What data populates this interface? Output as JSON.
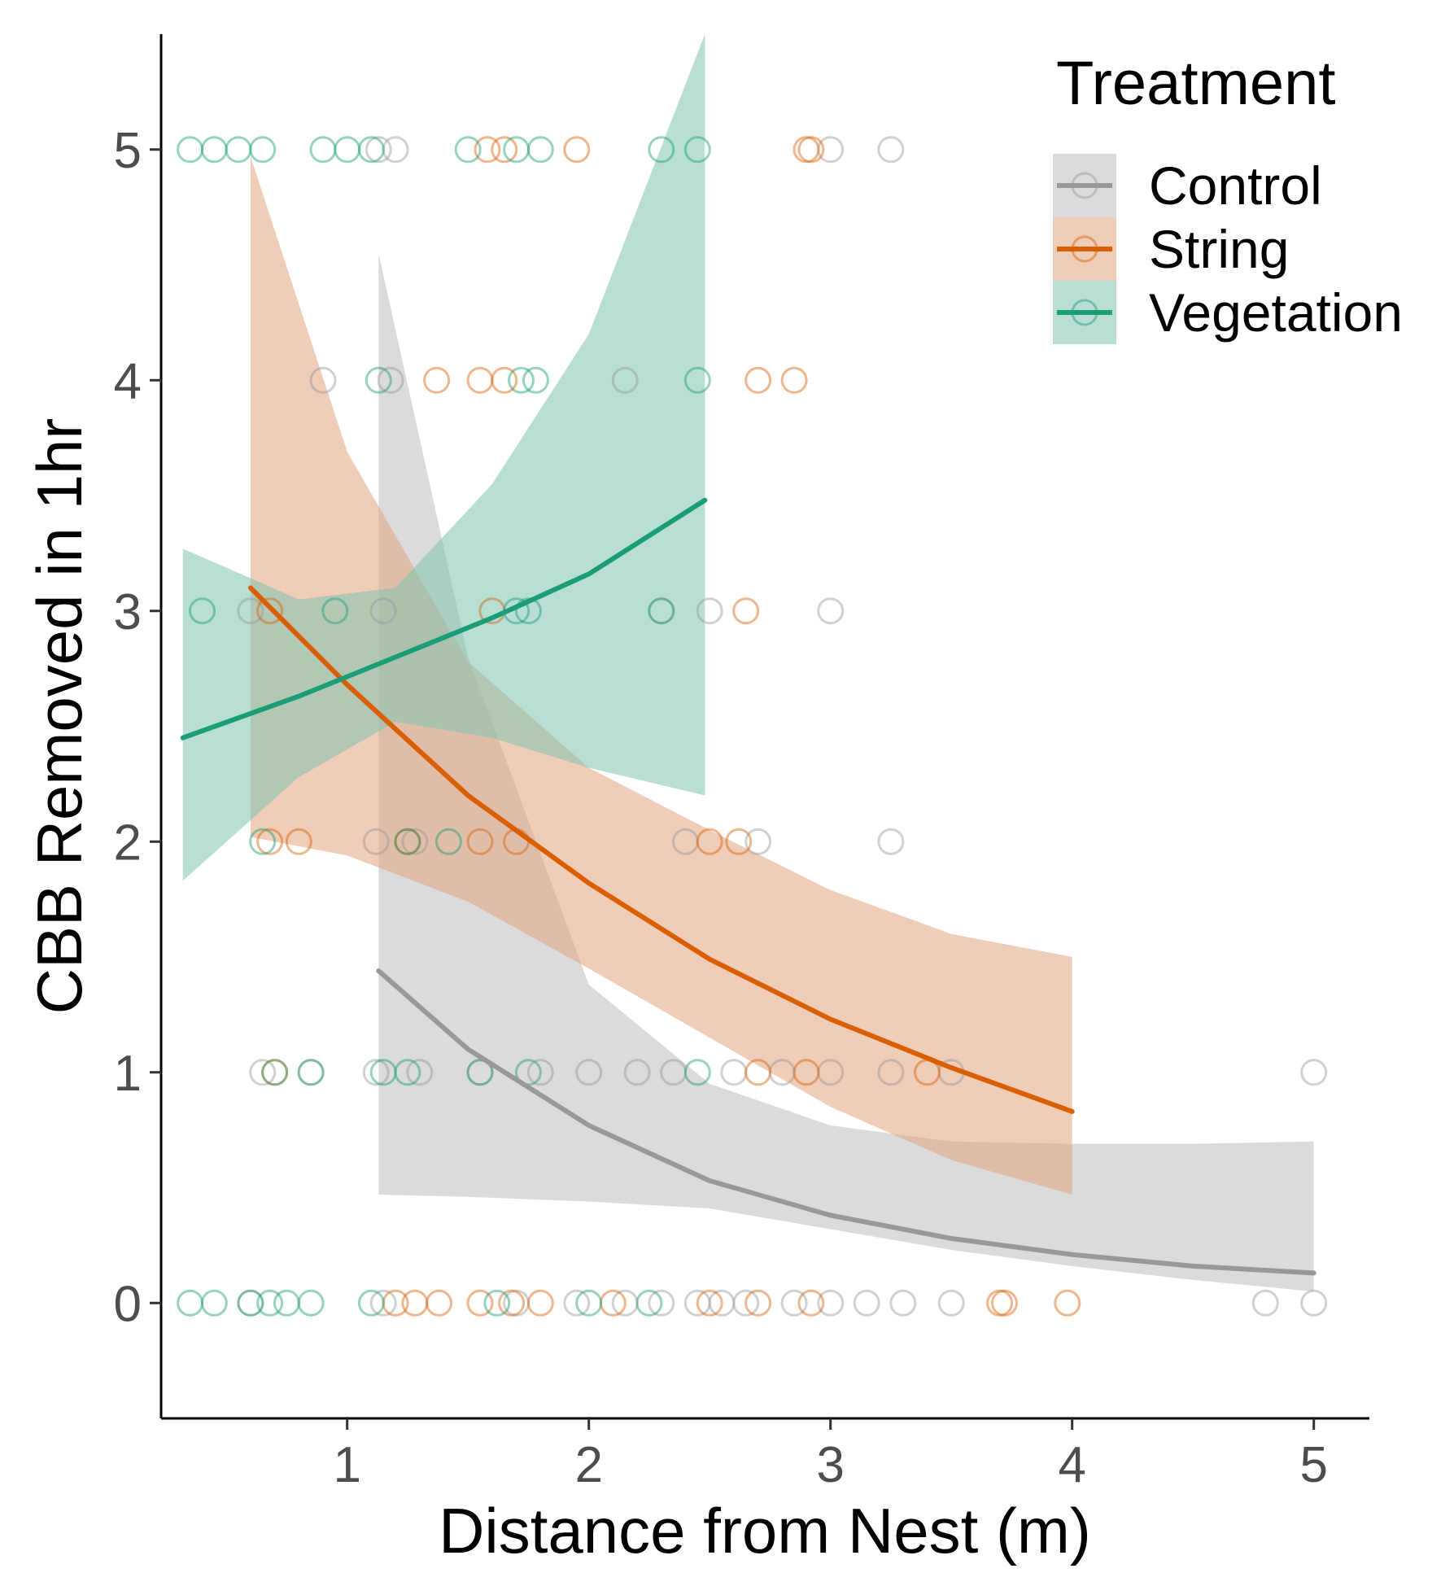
{
  "chart_data": {
    "type": "scatter",
    "title": "",
    "xlabel": "Distance from Nest (m)",
    "ylabel": "CBB Removed in 1hr",
    "xlim": [
      0.23,
      5.23
    ],
    "ylim": [
      -0.5,
      5.5
    ],
    "x_ticks": [
      1,
      2,
      3,
      4,
      5
    ],
    "x_tick_labels": [
      "1",
      "2",
      "3",
      "4",
      "5"
    ],
    "y_ticks": [
      0,
      1,
      2,
      3,
      4,
      5
    ],
    "y_tick_labels": [
      "0",
      "1",
      "2",
      "3",
      "4",
      "5"
    ],
    "grid": false,
    "legend": {
      "title": "Treatment",
      "position": "top-right"
    },
    "series": [
      {
        "name": "Control",
        "color": "#999999",
        "ribbon_color": "#bdbdbd",
        "fit": {
          "x": [
            1.13,
            1.5,
            2.0,
            2.5,
            3.0,
            3.5,
            4.0,
            4.5,
            5.0
          ],
          "y": [
            1.44,
            1.1,
            0.77,
            0.53,
            0.38,
            0.28,
            0.21,
            0.16,
            0.13
          ],
          "lower": [
            0.47,
            0.46,
            0.44,
            0.41,
            0.32,
            0.23,
            0.16,
            0.1,
            0.05
          ],
          "upper": [
            4.55,
            2.8,
            1.38,
            0.95,
            0.77,
            0.7,
            0.69,
            0.69,
            0.7
          ]
        },
        "points": [
          {
            "x": 1.13,
            "y": 5
          },
          {
            "x": 1.2,
            "y": 5
          },
          {
            "x": 3.0,
            "y": 5
          },
          {
            "x": 3.25,
            "y": 5
          },
          {
            "x": 0.9,
            "y": 4
          },
          {
            "x": 1.18,
            "y": 4
          },
          {
            "x": 2.15,
            "y": 4
          },
          {
            "x": 0.6,
            "y": 3
          },
          {
            "x": 1.15,
            "y": 3
          },
          {
            "x": 2.3,
            "y": 3
          },
          {
            "x": 2.5,
            "y": 3
          },
          {
            "x": 3.0,
            "y": 3
          },
          {
            "x": 1.12,
            "y": 2
          },
          {
            "x": 1.28,
            "y": 2
          },
          {
            "x": 2.4,
            "y": 2
          },
          {
            "x": 2.7,
            "y": 2
          },
          {
            "x": 3.25,
            "y": 2
          },
          {
            "x": 0.65,
            "y": 1
          },
          {
            "x": 0.85,
            "y": 1
          },
          {
            "x": 1.12,
            "y": 1
          },
          {
            "x": 1.3,
            "y": 1
          },
          {
            "x": 1.55,
            "y": 1
          },
          {
            "x": 1.8,
            "y": 1
          },
          {
            "x": 2.0,
            "y": 1
          },
          {
            "x": 2.2,
            "y": 1
          },
          {
            "x": 2.35,
            "y": 1
          },
          {
            "x": 2.6,
            "y": 1
          },
          {
            "x": 2.8,
            "y": 1
          },
          {
            "x": 3.0,
            "y": 1
          },
          {
            "x": 3.25,
            "y": 1
          },
          {
            "x": 3.5,
            "y": 1
          },
          {
            "x": 5.0,
            "y": 1
          },
          {
            "x": 0.6,
            "y": 0
          },
          {
            "x": 1.15,
            "y": 0
          },
          {
            "x": 1.7,
            "y": 0
          },
          {
            "x": 1.95,
            "y": 0
          },
          {
            "x": 2.15,
            "y": 0
          },
          {
            "x": 2.3,
            "y": 0
          },
          {
            "x": 2.45,
            "y": 0
          },
          {
            "x": 2.55,
            "y": 0
          },
          {
            "x": 2.65,
            "y": 0
          },
          {
            "x": 2.85,
            "y": 0
          },
          {
            "x": 3.0,
            "y": 0
          },
          {
            "x": 3.15,
            "y": 0
          },
          {
            "x": 3.3,
            "y": 0
          },
          {
            "x": 3.5,
            "y": 0
          },
          {
            "x": 4.8,
            "y": 0
          },
          {
            "x": 5.0,
            "y": 0
          }
        ]
      },
      {
        "name": "String",
        "color": "#d95f02",
        "ribbon_color": "#e2a47d",
        "fit": {
          "x": [
            0.6,
            1.0,
            1.5,
            2.0,
            2.5,
            3.0,
            3.5,
            4.0
          ],
          "y": [
            3.1,
            2.68,
            2.2,
            1.82,
            1.49,
            1.23,
            1.02,
            0.83
          ],
          "lower": [
            2.02,
            1.94,
            1.74,
            1.45,
            1.15,
            0.85,
            0.62,
            0.47
          ],
          "upper": [
            4.97,
            3.69,
            2.78,
            2.32,
            2.05,
            1.79,
            1.6,
            1.5
          ]
        },
        "points": [
          {
            "x": 1.58,
            "y": 5
          },
          {
            "x": 1.65,
            "y": 5
          },
          {
            "x": 1.95,
            "y": 5
          },
          {
            "x": 2.9,
            "y": 5
          },
          {
            "x": 2.92,
            "y": 5
          },
          {
            "x": 1.37,
            "y": 4
          },
          {
            "x": 1.55,
            "y": 4
          },
          {
            "x": 1.65,
            "y": 4
          },
          {
            "x": 2.7,
            "y": 4
          },
          {
            "x": 2.85,
            "y": 4
          },
          {
            "x": 0.68,
            "y": 3
          },
          {
            "x": 1.6,
            "y": 3
          },
          {
            "x": 2.65,
            "y": 3
          },
          {
            "x": 0.68,
            "y": 2
          },
          {
            "x": 0.8,
            "y": 2
          },
          {
            "x": 1.25,
            "y": 2
          },
          {
            "x": 1.55,
            "y": 2
          },
          {
            "x": 1.7,
            "y": 2
          },
          {
            "x": 2.5,
            "y": 2
          },
          {
            "x": 2.62,
            "y": 2
          },
          {
            "x": 0.7,
            "y": 1
          },
          {
            "x": 2.7,
            "y": 1
          },
          {
            "x": 2.9,
            "y": 1
          },
          {
            "x": 3.4,
            "y": 1
          },
          {
            "x": 1.2,
            "y": 0
          },
          {
            "x": 1.28,
            "y": 0
          },
          {
            "x": 1.38,
            "y": 0
          },
          {
            "x": 1.55,
            "y": 0
          },
          {
            "x": 1.68,
            "y": 0
          },
          {
            "x": 1.8,
            "y": 0
          },
          {
            "x": 2.1,
            "y": 0
          },
          {
            "x": 2.5,
            "y": 0
          },
          {
            "x": 2.7,
            "y": 0
          },
          {
            "x": 2.92,
            "y": 0
          },
          {
            "x": 3.7,
            "y": 0
          },
          {
            "x": 3.72,
            "y": 0
          },
          {
            "x": 3.98,
            "y": 0
          }
        ]
      },
      {
        "name": "Vegetation",
        "color": "#1b9e77",
        "ribbon_color": "#7fc4b0",
        "fit": {
          "x": [
            0.32,
            0.8,
            1.2,
            1.6,
            2.0,
            2.48
          ],
          "y": [
            2.45,
            2.63,
            2.8,
            2.97,
            3.16,
            3.48
          ],
          "lower": [
            1.83,
            2.28,
            2.52,
            2.45,
            2.32,
            2.2
          ],
          "upper": [
            3.27,
            3.05,
            3.1,
            3.55,
            4.2,
            5.5
          ]
        },
        "points": [
          {
            "x": 0.35,
            "y": 5
          },
          {
            "x": 0.45,
            "y": 5
          },
          {
            "x": 0.55,
            "y": 5
          },
          {
            "x": 0.65,
            "y": 5
          },
          {
            "x": 0.9,
            "y": 5
          },
          {
            "x": 1.0,
            "y": 5
          },
          {
            "x": 1.1,
            "y": 5
          },
          {
            "x": 1.5,
            "y": 5
          },
          {
            "x": 1.7,
            "y": 5
          },
          {
            "x": 1.8,
            "y": 5
          },
          {
            "x": 2.3,
            "y": 5
          },
          {
            "x": 2.45,
            "y": 5
          },
          {
            "x": 1.13,
            "y": 4
          },
          {
            "x": 1.72,
            "y": 4
          },
          {
            "x": 1.78,
            "y": 4
          },
          {
            "x": 2.45,
            "y": 4
          },
          {
            "x": 0.4,
            "y": 3
          },
          {
            "x": 0.95,
            "y": 3
          },
          {
            "x": 1.7,
            "y": 3
          },
          {
            "x": 1.75,
            "y": 3
          },
          {
            "x": 2.3,
            "y": 3
          },
          {
            "x": 0.65,
            "y": 2
          },
          {
            "x": 1.25,
            "y": 2
          },
          {
            "x": 1.42,
            "y": 2
          },
          {
            "x": 0.7,
            "y": 1
          },
          {
            "x": 0.85,
            "y": 1
          },
          {
            "x": 1.15,
            "y": 1
          },
          {
            "x": 1.25,
            "y": 1
          },
          {
            "x": 1.55,
            "y": 1
          },
          {
            "x": 1.75,
            "y": 1
          },
          {
            "x": 2.45,
            "y": 1
          },
          {
            "x": 0.35,
            "y": 0
          },
          {
            "x": 0.45,
            "y": 0
          },
          {
            "x": 0.6,
            "y": 0
          },
          {
            "x": 0.68,
            "y": 0
          },
          {
            "x": 0.75,
            "y": 0
          },
          {
            "x": 0.85,
            "y": 0
          },
          {
            "x": 1.1,
            "y": 0
          },
          {
            "x": 1.62,
            "y": 0
          },
          {
            "x": 2.0,
            "y": 0
          },
          {
            "x": 2.25,
            "y": 0
          }
        ]
      }
    ]
  }
}
